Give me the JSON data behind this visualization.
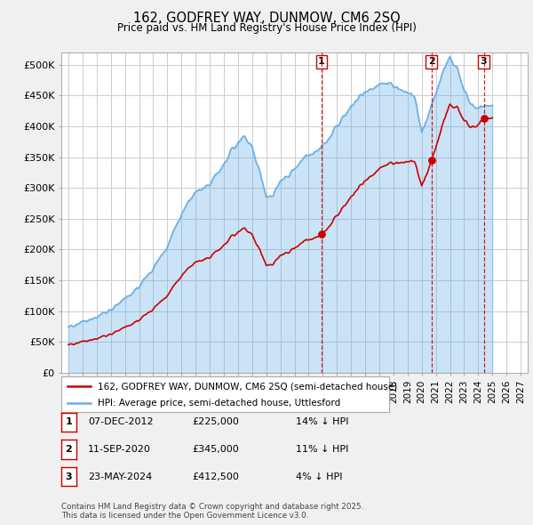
{
  "title": "162, GODFREY WAY, DUNMOW, CM6 2SQ",
  "subtitle": "Price paid vs. HM Land Registry's House Price Index (HPI)",
  "ylim": [
    0,
    520000
  ],
  "yticks": [
    0,
    50000,
    100000,
    150000,
    200000,
    250000,
    300000,
    350000,
    400000,
    450000,
    500000
  ],
  "ytick_labels": [
    "£0",
    "£50K",
    "£100K",
    "£150K",
    "£200K",
    "£250K",
    "£300K",
    "£350K",
    "£400K",
    "£450K",
    "£500K"
  ],
  "xlim_start": 1994.5,
  "xlim_end": 2027.5,
  "hpi_color": "#6ab0e8",
  "price_color": "#cc0000",
  "background_color": "#f0f0f0",
  "plot_bg_color": "#ffffff",
  "grid_color": "#cccccc",
  "sale_dates": [
    2012.92,
    2020.69,
    2024.39
  ],
  "sale_prices": [
    225000,
    345000,
    412500
  ],
  "sale_labels": [
    "1",
    "2",
    "3"
  ],
  "vline_color": "#cc0000",
  "legend_entries": [
    "162, GODFREY WAY, DUNMOW, CM6 2SQ (semi-detached house)",
    "HPI: Average price, semi-detached house, Uttlesford"
  ],
  "table_rows": [
    [
      "1",
      "07-DEC-2012",
      "£225,000",
      "14% ↓ HPI"
    ],
    [
      "2",
      "11-SEP-2020",
      "£345,000",
      "11% ↓ HPI"
    ],
    [
      "3",
      "23-MAY-2024",
      "£412,500",
      "4% ↓ HPI"
    ]
  ],
  "footer": "Contains HM Land Registry data © Crown copyright and database right 2025.\nThis data is licensed under the Open Government Licence v3.0."
}
